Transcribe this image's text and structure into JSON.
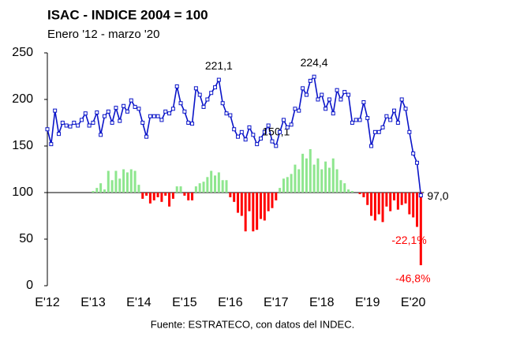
{
  "chart_data": {
    "type": "line_bar",
    "title": "ISAC - INDICE 2004 = 100",
    "subtitle": "Enero '12 - marzo '20",
    "source": "Fuente: ESTRATECO, con datos del INDEC.",
    "categories": [
      "E'12",
      null,
      null,
      null,
      null,
      null,
      null,
      null,
      null,
      null,
      null,
      null,
      "E'13",
      null,
      null,
      null,
      null,
      null,
      null,
      null,
      null,
      null,
      null,
      null,
      "E'14",
      null,
      null,
      null,
      null,
      null,
      null,
      null,
      null,
      null,
      null,
      null,
      "E'15",
      null,
      null,
      null,
      null,
      null,
      null,
      null,
      null,
      null,
      null,
      null,
      "E'16",
      null,
      null,
      null,
      null,
      null,
      null,
      null,
      null,
      null,
      null,
      null,
      "E'17",
      null,
      null,
      null,
      null,
      null,
      null,
      null,
      null,
      null,
      null,
      null,
      "E'18",
      null,
      null,
      null,
      null,
      null,
      null,
      null,
      null,
      null,
      null,
      null,
      "E'19",
      null,
      null,
      null,
      null,
      null,
      null,
      null,
      null,
      null,
      null,
      null,
      "E'20",
      null,
      null
    ],
    "ylim": [
      0,
      250
    ],
    "yticks": [
      0,
      50,
      100,
      150,
      200,
      250
    ],
    "y2lim": [
      -60,
      90
    ],
    "series": [
      {
        "type": "line",
        "color": "#0a14c8",
        "values": [
          168,
          152,
          188,
          163,
          175,
          172,
          171,
          175,
          172,
          178,
          185,
          172,
          175,
          186,
          162,
          182,
          187,
          175,
          191,
          177,
          193,
          187,
          199,
          192,
          190,
          175,
          160,
          182,
          182,
          182,
          178,
          187,
          185,
          190,
          214,
          196,
          187,
          175,
          174,
          212,
          205,
          192,
          200,
          207,
          213,
          221.1,
          196,
          185,
          183,
          168,
          160,
          165,
          157,
          170,
          162,
          152,
          158,
          165,
          172,
          155,
          150.1,
          165,
          178,
          170,
          173,
          190,
          188,
          212,
          205,
          220,
          224.4,
          200,
          205,
          190,
          200,
          185,
          210,
          200,
          208,
          205,
          175,
          178,
          178,
          197,
          180,
          150,
          165,
          165,
          170,
          182,
          178,
          188,
          175,
          200,
          190,
          165,
          142,
          132,
          97.0
        ],
        "value_labels": [
          null,
          null,
          null,
          null,
          null,
          null,
          null,
          null,
          null,
          null,
          null,
          null,
          null,
          null,
          null,
          null,
          null,
          null,
          null,
          null,
          null,
          null,
          null,
          null,
          null,
          null,
          null,
          null,
          null,
          null,
          null,
          null,
          null,
          null,
          null,
          null,
          null,
          null,
          null,
          null,
          null,
          null,
          null,
          null,
          null,
          "221,1",
          null,
          null,
          null,
          null,
          null,
          null,
          null,
          null,
          null,
          null,
          null,
          null,
          null,
          null,
          "150,1",
          null,
          null,
          null,
          null,
          null,
          null,
          null,
          null,
          null,
          "224,4",
          null,
          null,
          null,
          null,
          null,
          null,
          null,
          null,
          null,
          null,
          null,
          null,
          null,
          null,
          null,
          null,
          null,
          null,
          null,
          null,
          null,
          null,
          null,
          null,
          null,
          null,
          null,
          "97,0"
        ]
      },
      {
        "type": "bar",
        "axis": "y2",
        "color": "#8ee68e",
        "negative_color": "#ff0000",
        "values": [
          null,
          null,
          null,
          null,
          null,
          null,
          null,
          null,
          null,
          null,
          null,
          null,
          1,
          3,
          6,
          2,
          14,
          8,
          14,
          9,
          15,
          13,
          15,
          14,
          5,
          -4,
          -2,
          -7,
          -5,
          -3,
          -6,
          -2,
          -9,
          -4,
          4,
          4,
          -2,
          -5,
          -5,
          4,
          6,
          7,
          10,
          14,
          11,
          13,
          8,
          8,
          -3,
          -6,
          -13,
          -15,
          -25,
          -12,
          -25,
          -24,
          -17,
          -18,
          -12,
          -10,
          -5,
          3,
          9,
          10,
          12,
          18,
          15,
          25,
          22,
          28,
          18,
          22,
          15,
          20,
          16,
          22,
          15,
          8,
          6,
          2,
          1,
          0,
          -1,
          -3,
          -8,
          -15,
          -18,
          -14,
          -19,
          -9,
          -12,
          -5,
          -11,
          -8,
          -7,
          -14,
          -16,
          -22.1,
          -46.8
        ],
        "value_labels": [
          null,
          null,
          null,
          null,
          null,
          null,
          null,
          null,
          null,
          null,
          null,
          null,
          null,
          null,
          null,
          null,
          null,
          null,
          null,
          null,
          null,
          null,
          null,
          null,
          null,
          null,
          null,
          null,
          null,
          null,
          null,
          null,
          null,
          null,
          null,
          null,
          null,
          null,
          null,
          null,
          null,
          null,
          null,
          null,
          null,
          null,
          null,
          null,
          null,
          null,
          null,
          null,
          null,
          null,
          null,
          null,
          null,
          null,
          null,
          null,
          null,
          null,
          null,
          null,
          null,
          null,
          null,
          null,
          null,
          null,
          null,
          null,
          null,
          null,
          null,
          null,
          null,
          null,
          null,
          null,
          null,
          null,
          null,
          null,
          null,
          null,
          null,
          null,
          null,
          null,
          null,
          null,
          null,
          null,
          null,
          null,
          null,
          "-22,1%",
          "-46,8%"
        ]
      }
    ]
  }
}
